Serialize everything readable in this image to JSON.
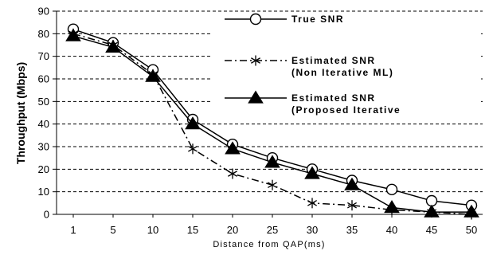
{
  "chart_data": {
    "type": "line",
    "xlabel": "Distance from QAP(ms)",
    "ylabel": "Throughput (Mbps)",
    "ylim": [
      0,
      90
    ],
    "yticks": [
      0,
      10,
      20,
      30,
      40,
      50,
      60,
      70,
      80,
      90
    ],
    "categories": [
      "1",
      "5",
      "10",
      "15",
      "20",
      "25",
      "30",
      "35",
      "40",
      "45",
      "50"
    ],
    "grid": "horizontal-dashed",
    "legend_position": "top-right",
    "series": [
      {
        "name_lines": [
          "True SNR"
        ],
        "marker": "circle-open",
        "line_style": "solid",
        "color": "#000000",
        "values": [
          82,
          76,
          64,
          42,
          31,
          25,
          20,
          15,
          11,
          6,
          4
        ]
      },
      {
        "name_lines": [
          "Estimated SNR",
          "(Non Iterative ML)"
        ],
        "marker": "asterisk",
        "line_style": "dash-dot",
        "color": "#000000",
        "values": [
          80,
          75,
          62,
          29,
          18,
          13,
          5,
          4,
          2,
          1,
          0
        ]
      },
      {
        "name_lines": [
          "Estimated SNR",
          "(Proposed Iterative"
        ],
        "marker": "triangle-filled",
        "line_style": "solid",
        "color": "#000000",
        "values": [
          79,
          74,
          61,
          40,
          29,
          23,
          18,
          13,
          3,
          1,
          1
        ]
      }
    ]
  }
}
